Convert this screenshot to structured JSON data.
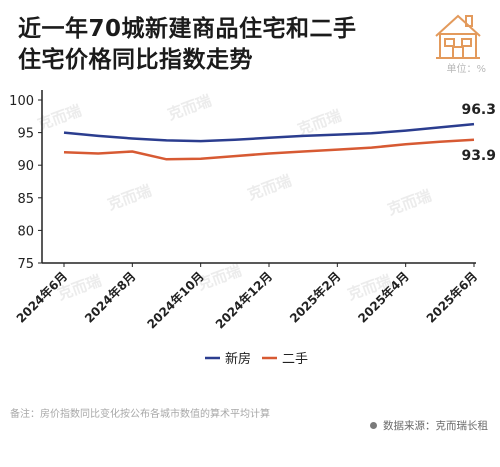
{
  "title_line1": "近一年70城新建商品住宅和二手",
  "title_line2": "住宅价格同比指数走势",
  "unit_label": "单位：%",
  "note": "备注：房价指数同比变化按公布各城市数值的算术平均计算",
  "source": "数据来源：克而瑞长租",
  "watermark": "克而瑞",
  "colors": {
    "new": "#2b3d8f",
    "second": "#d75a33",
    "axis": "#222222",
    "logo": "#e39a5c"
  },
  "logo_icon": "house-icon",
  "chart_data": {
    "type": "line",
    "x": [
      "2024年6月",
      "2024年7月",
      "2024年8月",
      "2024年9月",
      "2024年10月",
      "2024年11月",
      "2024年12月",
      "2025年1月",
      "2025年2月",
      "2025年3月",
      "2025年4月",
      "2025年5月",
      "2025年6月"
    ],
    "xtick_labels": [
      "2024年6月",
      "2024年8月",
      "2024年10月",
      "2024年12月",
      "2025年2月",
      "2025年4月",
      "2025年6月"
    ],
    "series": [
      {
        "name": "新房",
        "values": [
          95.0,
          94.5,
          94.1,
          93.8,
          93.7,
          93.9,
          94.2,
          94.5,
          94.7,
          94.9,
          95.3,
          95.8,
          96.3
        ],
        "end_label": "96.3"
      },
      {
        "name": "二手",
        "values": [
          92.0,
          91.8,
          92.1,
          90.9,
          91.0,
          91.4,
          91.8,
          92.1,
          92.4,
          92.7,
          93.2,
          93.6,
          93.9
        ],
        "end_label": "93.9"
      }
    ],
    "yticks": [
      "100",
      "95",
      "90",
      "85",
      "80",
      "75"
    ],
    "ylim": [
      75,
      100
    ],
    "grid": false,
    "legend": "bottom-center"
  }
}
